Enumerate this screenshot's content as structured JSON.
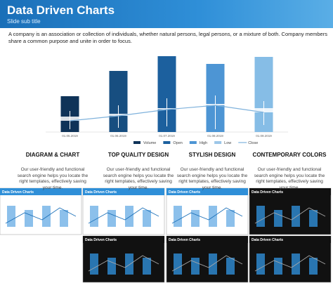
{
  "header": {
    "title": "Data Driven Charts",
    "subtitle": "Slide sub title"
  },
  "intro": "A company is an association or collection of individuals, whether natural persons, legal persons, or a mixture of both. Company members share a common purpose and unite in order to focus.",
  "chart_data": {
    "type": "candlestick",
    "categories": [
      "01.05.2019",
      "01.06.2019",
      "01.07.2019",
      "01.08.2019",
      "01.09.2019"
    ],
    "bar_colors": [
      "#0f3358",
      "#174e80",
      "#1c609e",
      "#4d95d4",
      "#86bde6"
    ],
    "series": [
      {
        "name": "Volume",
        "color": "#0f3358",
        "values": [
          51,
          87,
          108,
          97,
          107
        ]
      },
      {
        "name": "Open",
        "color": "#1c609e",
        "values": [
          22,
          26,
          34,
          40,
          34
        ]
      },
      {
        "name": "High",
        "color": "#4d95d4",
        "values": [
          30,
          38,
          48,
          52,
          44
        ]
      },
      {
        "name": "Low",
        "color": "#9cc6e8",
        "values": [
          4,
          6,
          8,
          4,
          10
        ]
      },
      {
        "name": "Close",
        "color": "#7fb2dc",
        "values": [
          16,
          23,
          32,
          38,
          28
        ]
      }
    ],
    "ylim": [
      0,
      110
    ]
  },
  "features": [
    {
      "title": "DIAGRAM & CHART",
      "text": "Our user-friendly and functional search engine helps you locate the right templates, effectively saving your time."
    },
    {
      "title": "TOP QUALITY DESIGN",
      "text": "Our user-friendly and functional search engine helps you locate the right templates, effectively saving your time."
    },
    {
      "title": "STYLISH DESIGN",
      "text": "Our user-friendly and functional search engine helps you locate the right templates, effectively saving your time."
    },
    {
      "title": "CONTEMPORARY COLORS",
      "text": "Our user-friendly and functional search engine helps you locate the right templates, effectively saving your time."
    }
  ],
  "thumbnails": [
    {
      "title": "Data Driven Charts"
    },
    {
      "title": "Data Driven Charts"
    },
    {
      "title": "Data Driven Charts"
    },
    {
      "title": "Data Driven Charts"
    },
    {
      "title": "Data Driven Charts"
    },
    {
      "title": "Data Driven Charts"
    },
    {
      "title": "Data Driven Charts"
    }
  ]
}
